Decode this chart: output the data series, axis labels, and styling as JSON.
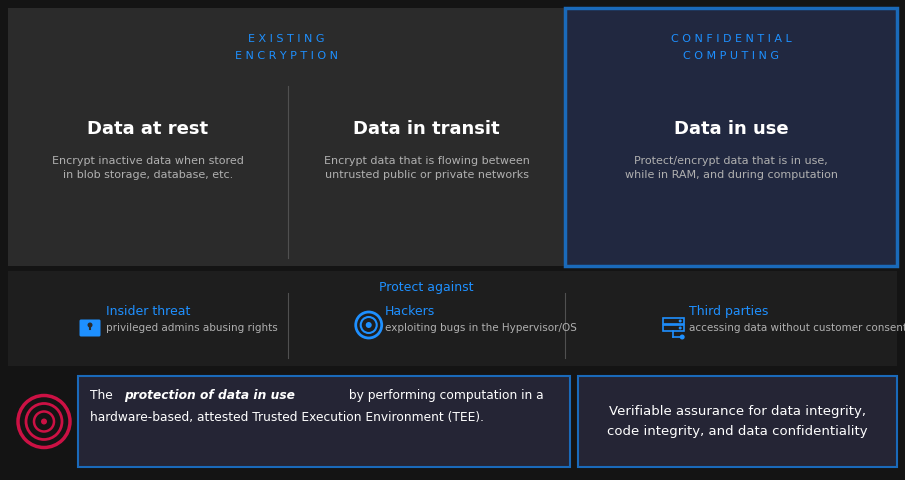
{
  "bg_color": "#141414",
  "top_panel_bg": "#2b2b2b",
  "conf_panel_bg": "#212840",
  "mid_panel_bg": "#1e1e1e",
  "bot_panel_bg": "#141414",
  "text_box_bg": "#252535",
  "blue_border": "#1a6aba",
  "divider_color": "#505050",
  "blue_text": "#1e90ff",
  "white_text": "#ffffff",
  "gray_text": "#b0b0b0",
  "red_logo": "#cc1144",
  "section1_label": "E X I S T I N G\nE N C R Y P T I O N",
  "section2_label": "C O N F I D E N T I A L\nC O M P U T I N G",
  "col1_title": "Data at rest",
  "col2_title": "Data in transit",
  "col3_title": "Data in use",
  "col1_desc": "Encrypt inactive data when stored\nin blob storage, database, etc.",
  "col2_desc": "Encrypt data that is flowing between\nuntrusted public or private networks",
  "col3_desc": "Protect/encrypt data that is in use,\nwhile in RAM, and during computation",
  "protect_label": "Protect against",
  "threat1_title": "Insider threat",
  "threat1_desc": "privileged admins abusing rights",
  "threat2_title": "Hackers",
  "threat2_desc": "exploiting bugs in the Hypervisor/OS",
  "threat3_title": "Third parties",
  "threat3_desc": "accessing data without customer consent",
  "bot_text2": "Verifiable assurance for data integrity,\ncode integrity, and data confidentiality"
}
